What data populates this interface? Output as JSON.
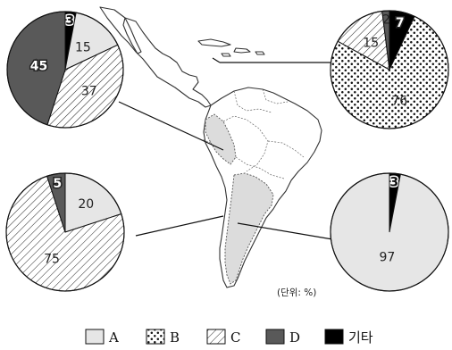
{
  "chart_data": {
    "type": "pie",
    "unit_note": "(단위: %)",
    "legend": [
      {
        "key": "A",
        "label": "A",
        "fill": "#e6e6e6"
      },
      {
        "key": "B",
        "label": "B",
        "fill": "dots"
      },
      {
        "key": "C",
        "label": "C",
        "fill": "hatch"
      },
      {
        "key": "D",
        "label": "D",
        "fill": "#595959"
      },
      {
        "key": "etc",
        "label": "기타",
        "fill": "#000000"
      }
    ],
    "charts": [
      {
        "id": "upper-left",
        "slices": [
          {
            "key": "etc",
            "value": 3
          },
          {
            "key": "A",
            "value": 15
          },
          {
            "key": "C",
            "value": 37
          },
          {
            "key": "D",
            "value": 45
          }
        ]
      },
      {
        "id": "upper-right",
        "slices": [
          {
            "key": "etc",
            "value": 7
          },
          {
            "key": "B",
            "value": 76
          },
          {
            "key": "C",
            "value": 15
          },
          {
            "key": "D",
            "value": 2
          }
        ]
      },
      {
        "id": "lower-left",
        "slices": [
          {
            "key": "A",
            "value": 20
          },
          {
            "key": "C",
            "value": 75
          },
          {
            "key": "D",
            "value": 5
          }
        ]
      },
      {
        "id": "lower-right",
        "slices": [
          {
            "key": "etc",
            "value": 3
          },
          {
            "key": "A",
            "value": 97
          }
        ]
      }
    ]
  }
}
